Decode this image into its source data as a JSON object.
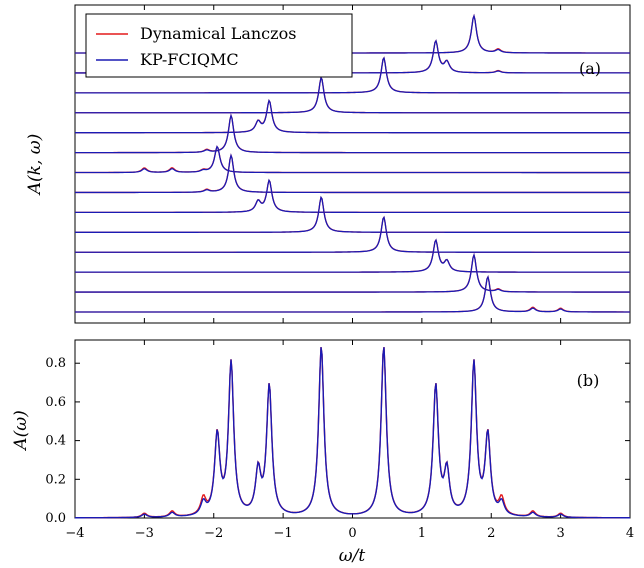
{
  "chart_data": [
    {
      "panel": "(a)",
      "type": "line",
      "ylabel": "A(k, ω)",
      "xlim": [
        -4,
        4
      ],
      "x_ticks": [
        -4,
        -3,
        -2,
        -1,
        0,
        1,
        2,
        3,
        4
      ],
      "grid": false,
      "legend_position": "top-left",
      "legend": [
        {
          "label": "Dynamical Lanczos",
          "color": "#e41a1c"
        },
        {
          "label": "KP-FCIQMC",
          "color": "#1a1ab4"
        }
      ],
      "offset_traces": [
        {
          "k_index": 1,
          "peaks": [
            {
              "x": 1.75,
              "h": 1.0
            },
            {
              "x": 2.1,
              "h": 0.08
            }
          ]
        },
        {
          "k_index": 2,
          "peaks": [
            {
              "x": 1.2,
              "h": 0.85
            },
            {
              "x": 1.36,
              "h": 0.28
            },
            {
              "x": 2.1,
              "h": 0.05
            }
          ]
        },
        {
          "k_index": 3,
          "peaks": [
            {
              "x": 0.45,
              "h": 0.95
            }
          ]
        },
        {
          "k_index": 4,
          "peaks": [
            {
              "x": -0.45,
              "h": 0.95
            }
          ]
        },
        {
          "k_index": 5,
          "peaks": [
            {
              "x": -1.2,
              "h": 0.85
            },
            {
              "x": -1.36,
              "h": 0.28
            }
          ]
        },
        {
          "k_index": 6,
          "peaks": [
            {
              "x": -1.75,
              "h": 1.0
            },
            {
              "x": -2.1,
              "h": 0.06
            }
          ]
        },
        {
          "k_index": 7,
          "peaks": [
            {
              "x": -1.95,
              "h": 0.7
            },
            {
              "x": -2.15,
              "h": 0.05
            },
            {
              "x": -2.6,
              "h": 0.1
            },
            {
              "x": -3.0,
              "h": 0.1
            }
          ]
        },
        {
          "k_index": 8,
          "peaks": [
            {
              "x": -1.75,
              "h": 1.0
            },
            {
              "x": -2.1,
              "h": 0.06
            }
          ]
        },
        {
          "k_index": 9,
          "peaks": [
            {
              "x": -1.2,
              "h": 0.85
            },
            {
              "x": -1.36,
              "h": 0.28
            }
          ]
        },
        {
          "k_index": 10,
          "peaks": [
            {
              "x": -0.45,
              "h": 0.95
            }
          ]
        },
        {
          "k_index": 11,
          "peaks": [
            {
              "x": 0.45,
              "h": 0.95
            }
          ]
        },
        {
          "k_index": 12,
          "peaks": [
            {
              "x": 1.2,
              "h": 0.85
            },
            {
              "x": 1.36,
              "h": 0.28
            }
          ]
        },
        {
          "k_index": 13,
          "peaks": [
            {
              "x": 1.75,
              "h": 1.0
            },
            {
              "x": 2.1,
              "h": 0.06
            }
          ]
        },
        {
          "k_index": 14,
          "peaks": [
            {
              "x": 1.95,
              "h": 0.95
            },
            {
              "x": 2.6,
              "h": 0.1
            },
            {
              "x": 3.0,
              "h": 0.08
            }
          ]
        }
      ]
    },
    {
      "panel": "(b)",
      "type": "line",
      "xlabel": "ω/t",
      "ylabel": "A(ω)",
      "xlim": [
        -4,
        4
      ],
      "ylim": [
        0,
        0.92
      ],
      "x_ticks": [
        -4,
        -3,
        -2,
        -1,
        0,
        1,
        2,
        3,
        4
      ],
      "y_ticks": [
        0.0,
        0.2,
        0.4,
        0.6,
        0.8
      ],
      "grid": false,
      "peaks": [
        {
          "x": -3.0,
          "y": 0.02
        },
        {
          "x": -2.6,
          "y": 0.03
        },
        {
          "x": -2.15,
          "y": 0.1
        },
        {
          "x": -1.95,
          "y": 0.46
        },
        {
          "x": -1.75,
          "y": 0.82
        },
        {
          "x": -1.36,
          "y": 0.29
        },
        {
          "x": -1.2,
          "y": 0.7
        },
        {
          "x": -0.45,
          "y": 0.89
        },
        {
          "x": 0.45,
          "y": 0.89
        },
        {
          "x": 1.2,
          "y": 0.7
        },
        {
          "x": 1.36,
          "y": 0.29
        },
        {
          "x": 1.75,
          "y": 0.82
        },
        {
          "x": 1.95,
          "y": 0.46
        },
        {
          "x": 2.15,
          "y": 0.1
        },
        {
          "x": 2.6,
          "y": 0.03
        },
        {
          "x": 3.0,
          "y": 0.02
        }
      ]
    }
  ]
}
